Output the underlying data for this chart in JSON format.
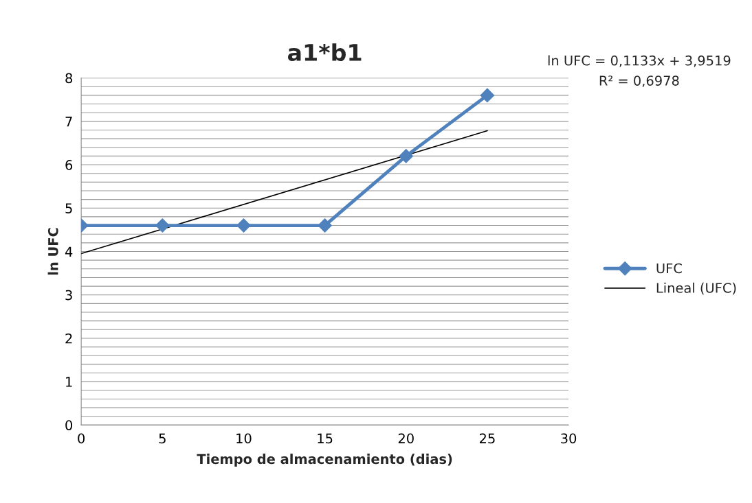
{
  "chart_data": {
    "type": "line",
    "title": "a1*b1",
    "xlabel": "Tiempo de almacenamiento (dias)",
    "ylabel": "ln UFC",
    "x": [
      0,
      5,
      10,
      15,
      20,
      25
    ],
    "series": [
      {
        "name": "UFC",
        "color": "#4f81bd",
        "values": [
          4.6,
          4.6,
          4.6,
          4.6,
          6.2,
          7.6
        ],
        "marker": "diamond",
        "line_style": "solid"
      },
      {
        "name": "Lineal (UFC)",
        "color": "#000000",
        "type": "line",
        "x": [
          0,
          25
        ],
        "values": [
          3.9519,
          6.7844
        ],
        "marker": "none",
        "line_style": "solid"
      }
    ],
    "annotations": [
      "ln UFC = 0,1133x + 3,9519",
      "R² = 0,6978"
    ],
    "xlim": [
      0,
      30
    ],
    "xticks": [
      0,
      5,
      10,
      15,
      20,
      25,
      30
    ],
    "ylim": [
      0,
      8
    ],
    "yticks": [
      0,
      {
        "value": 0.2,
        "label": null
      },
      {
        "value": 0.4,
        "label": null
      },
      {
        "value": 0.6,
        "label": null
      },
      {
        "value": 0.8,
        "label": null
      },
      1,
      {
        "value": 1.2,
        "label": null
      },
      {
        "value": 1.4,
        "label": null
      },
      {
        "value": 1.6,
        "label": null
      },
      {
        "value": 1.8,
        "label": null
      },
      2,
      {
        "value": 2.2,
        "label": null
      },
      {
        "value": 2.4,
        "label": null
      },
      {
        "value": 2.6,
        "label": null
      },
      {
        "value": 2.8,
        "label": null
      },
      3,
      {
        "value": 3.2,
        "label": null
      },
      {
        "value": 3.4,
        "label": null
      },
      {
        "value": 3.6,
        "label": null
      },
      {
        "value": 3.8,
        "label": null
      },
      4,
      {
        "value": 4.2,
        "label": null
      },
      {
        "value": 4.4,
        "label": null
      },
      {
        "value": 4.6,
        "label": null
      },
      {
        "value": 4.8,
        "label": null
      },
      5,
      {
        "value": 5.2,
        "label": null
      },
      {
        "value": 5.4,
        "label": null
      },
      {
        "value": 5.6,
        "label": null
      },
      {
        "value": 5.8,
        "label": null
      },
      6,
      {
        "value": 6.2,
        "label": null
      },
      {
        "value": 6.4,
        "label": null
      },
      {
        "value": 6.6,
        "label": null
      },
      {
        "value": 6.8,
        "label": null
      },
      7,
      {
        "value": 7.2,
        "label": null
      },
      {
        "value": 7.4,
        "label": null
      },
      {
        "value": 7.6,
        "label": null
      },
      {
        "value": 7.8,
        "label": null
      },
      8
    ],
    "grid": "y",
    "legend": "right"
  }
}
